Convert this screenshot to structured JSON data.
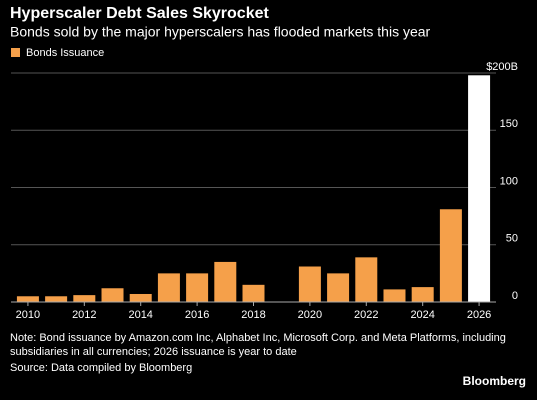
{
  "chart_data": {
    "type": "bar",
    "title": "Hyperscaler Debt Sales Skyrocket",
    "subtitle": "Bonds sold by the major hyperscalers has flooded markets this year",
    "x": [
      2010,
      2011,
      2012,
      2013,
      2014,
      2015,
      2016,
      2017,
      2018,
      2019,
      2020,
      2021,
      2022,
      2023,
      2024,
      2025,
      2026
    ],
    "series": [
      {
        "name": "Bonds Issuance",
        "color": "#f5a04a",
        "values": [
          5,
          5,
          6,
          12,
          7,
          25,
          25,
          35,
          15,
          0,
          31,
          25,
          39,
          11,
          13,
          81,
          198
        ],
        "colors": [
          "#f5a04a",
          "#f5a04a",
          "#f5a04a",
          "#f5a04a",
          "#f5a04a",
          "#f5a04a",
          "#f5a04a",
          "#f5a04a",
          "#f5a04a",
          "#f5a04a",
          "#f5a04a",
          "#f5a04a",
          "#f5a04a",
          "#f5a04a",
          "#f5a04a",
          "#f5a04a",
          "#ffffff"
        ]
      }
    ],
    "xlim": [
      2009.4,
      2026.6
    ],
    "xticks": [
      2010,
      2012,
      2014,
      2016,
      2018,
      2020,
      2022,
      2024,
      2026
    ],
    "ylim": [
      0,
      200
    ],
    "yticks": [
      0,
      50,
      100,
      150,
      {
        "value": 200,
        "label": "$200B"
      }
    ],
    "grid": true,
    "notes": [
      "Note: Bond issuance by Amazon.com Inc, Alphabet Inc, Microsoft Corp. and Meta Platforms, including",
      "subsidiaries in all currencies; 2026 issuance is year to date",
      "Source: Data compiled by Bloomberg"
    ],
    "brand": "Bloomberg"
  }
}
